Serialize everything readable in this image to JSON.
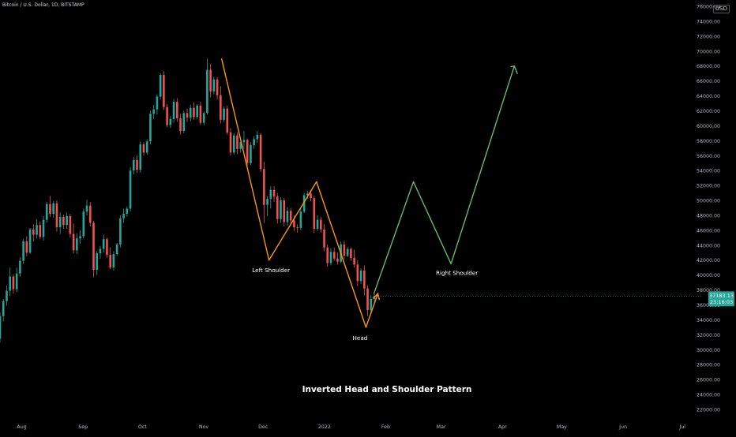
{
  "header": {
    "symbol": "Bitcoin / U.S. Dollar, 1D, BITSTAMP",
    "currency": "USD"
  },
  "chart_data": {
    "type": "candlestick",
    "title": "Inverted Head and Shoulder Pattern",
    "y_axis": {
      "range": [
        21000,
        77000
      ],
      "ticks": [
        "22000.00",
        "24000.00",
        "26000.00",
        "28000.00",
        "30000.00",
        "32000.00",
        "34000.00",
        "36000.00",
        "38000.00",
        "40000.00",
        "42000.00",
        "44000.00",
        "46000.00",
        "48000.00",
        "50000.00",
        "52000.00",
        "54000.00",
        "56000.00",
        "58000.00",
        "60000.00",
        "62000.00",
        "64000.00",
        "66000.00",
        "68000.00",
        "70000.00",
        "72000.00",
        "74000.00",
        "76000.00"
      ]
    },
    "x_axis": {
      "ticks": [
        "Aug",
        "Sep",
        "Oct",
        "Nov",
        "Dec",
        "2022",
        "Feb",
        "Mar",
        "Apr",
        "May",
        "Jun",
        "Jul"
      ]
    },
    "price_tag": {
      "price": "37183.13",
      "countdown": "23:16:03"
    },
    "pattern_orange": [
      {
        "date": "2021-11-10",
        "price": 69000
      },
      {
        "date": "2021-12-04",
        "price": 42000
      },
      {
        "date": "2021-12-28",
        "price": 52500
      },
      {
        "date": "2022-01-22",
        "price": 33000
      },
      {
        "date": "2022-01-28",
        "price": 37500
      }
    ],
    "projection_green": [
      {
        "date": "2022-01-26",
        "price": 37500
      },
      {
        "date": "2022-02-15",
        "price": 52500
      },
      {
        "date": "2022-03-06",
        "price": 41500
      },
      {
        "date": "2022-04-07",
        "price": 68000
      }
    ],
    "annotations": [
      {
        "text": "Left Shoulder",
        "date": "2021-12-05",
        "price": 40400
      },
      {
        "text": "Head",
        "date": "2022-01-19",
        "price": 31300
      },
      {
        "text": "Right Shoulder",
        "date": "2022-03-09",
        "price": 40000
      }
    ],
    "candles": [
      [
        31500,
        35000,
        31000,
        34500
      ],
      [
        34500,
        36800,
        33800,
        36500
      ],
      [
        36500,
        38600,
        35900,
        37900
      ],
      [
        37900,
        41000,
        37200,
        39800
      ],
      [
        39800,
        40100,
        37500,
        38100
      ],
      [
        38100,
        41000,
        37700,
        40200
      ],
      [
        40200,
        42400,
        39800,
        41900
      ],
      [
        41900,
        44800,
        41500,
        44500
      ],
      [
        44500,
        45200,
        42500,
        43000
      ],
      [
        43000,
        46300,
        42800,
        46100
      ],
      [
        46100,
        46800,
        44500,
        45400
      ],
      [
        45400,
        47500,
        44900,
        46700
      ],
      [
        46700,
        47200,
        44800,
        45100
      ],
      [
        45100,
        47900,
        44600,
        47400
      ],
      [
        47400,
        49800,
        47000,
        49500
      ],
      [
        49500,
        50600,
        47800,
        48200
      ],
      [
        48200,
        49900,
        47700,
        49600
      ],
      [
        49600,
        50000,
        45800,
        46400
      ],
      [
        46400,
        48400,
        45500,
        47800
      ],
      [
        47800,
        48100,
        46200,
        46700
      ],
      [
        46700,
        48400,
        46200,
        47900
      ],
      [
        47900,
        48200,
        45000,
        45500
      ],
      [
        45500,
        46900,
        42900,
        43300
      ],
      [
        43300,
        45600,
        42800,
        44900
      ],
      [
        44900,
        46000,
        44200,
        45200
      ],
      [
        45200,
        48900,
        44900,
        48500
      ],
      [
        48500,
        50100,
        48000,
        49300
      ],
      [
        49300,
        49800,
        46500,
        47000
      ],
      [
        47000,
        47300,
        39700,
        40700
      ],
      [
        40700,
        43200,
        40000,
        42900
      ],
      [
        42900,
        43900,
        42200,
        43500
      ],
      [
        43500,
        45400,
        43000,
        44800
      ],
      [
        44800,
        45000,
        42300,
        42700
      ],
      [
        42700,
        43700,
        40800,
        41000
      ],
      [
        41000,
        43200,
        40600,
        42800
      ],
      [
        42800,
        44300,
        42600,
        44100
      ],
      [
        44100,
        48000,
        43700,
        47600
      ],
      [
        47600,
        48900,
        47000,
        48200
      ],
      [
        48200,
        49200,
        47800,
        48900
      ],
      [
        48900,
        54500,
        48500,
        54000
      ],
      [
        54000,
        55800,
        53500,
        55400
      ],
      [
        55400,
        56000,
        53700,
        54100
      ],
      [
        54100,
        57900,
        53700,
        57500
      ],
      [
        57500,
        57800,
        56000,
        56400
      ],
      [
        56400,
        58200,
        56100,
        57900
      ],
      [
        57900,
        62000,
        57500,
        61600
      ],
      [
        61600,
        62800,
        60900,
        62200
      ],
      [
        62200,
        64200,
        61500,
        63900
      ],
      [
        63900,
        67000,
        63500,
        66800
      ],
      [
        66800,
        67300,
        62100,
        62500
      ],
      [
        62500,
        62900,
        59800,
        60100
      ],
      [
        60100,
        61300,
        59700,
        60900
      ],
      [
        60900,
        63600,
        60400,
        63200
      ],
      [
        63200,
        63700,
        60500,
        61000
      ],
      [
        61000,
        61600,
        58800,
        59300
      ],
      [
        59300,
        62000,
        59000,
        61700
      ],
      [
        61700,
        62300,
        60500,
        61100
      ],
      [
        61100,
        62800,
        60600,
        62400
      ],
      [
        62400,
        63100,
        60800,
        61200
      ],
      [
        61200,
        62900,
        60900,
        62700
      ],
      [
        62700,
        63200,
        60100,
        60400
      ],
      [
        60400,
        61900,
        60100,
        61700
      ],
      [
        61700,
        69000,
        61500,
        67500
      ],
      [
        67500,
        68300,
        63800,
        64600
      ],
      [
        64600,
        66600,
        64200,
        66200
      ],
      [
        66200,
        66500,
        63500,
        64100
      ],
      [
        64100,
        65300,
        60300,
        60800
      ],
      [
        60800,
        62600,
        60500,
        62300
      ],
      [
        62300,
        62700,
        58800,
        59100
      ],
      [
        59100,
        59700,
        56000,
        56400
      ],
      [
        56400,
        59000,
        56100,
        58700
      ],
      [
        58700,
        59100,
        56200,
        56900
      ],
      [
        56900,
        58400,
        56400,
        57800
      ],
      [
        57800,
        59300,
        56900,
        58100
      ],
      [
        58100,
        58300,
        54500,
        55000
      ],
      [
        55000,
        57800,
        54700,
        57400
      ],
      [
        57400,
        58600,
        56900,
        58200
      ],
      [
        58200,
        59300,
        57700,
        58800
      ],
      [
        58800,
        59000,
        53800,
        54200
      ],
      [
        54200,
        55200,
        47000,
        49400
      ],
      [
        49400,
        50600,
        47900,
        50200
      ],
      [
        50200,
        51900,
        48900,
        51400
      ],
      [
        51400,
        51900,
        49800,
        50500
      ],
      [
        50500,
        51000,
        46900,
        47500
      ],
      [
        47500,
        50400,
        47000,
        50000
      ],
      [
        50000,
        50300,
        46500,
        47100
      ],
      [
        47100,
        49100,
        46600,
        48600
      ],
      [
        48600,
        49000,
        46900,
        47300
      ],
      [
        47300,
        48000,
        45900,
        46400
      ],
      [
        46400,
        46800,
        45700,
        46300
      ],
      [
        46300,
        48900,
        46000,
        48500
      ],
      [
        48500,
        51000,
        48300,
        50700
      ],
      [
        50700,
        51300,
        50200,
        50900
      ],
      [
        50900,
        51300,
        49900,
        50300
      ],
      [
        50300,
        50600,
        45600,
        46200
      ],
      [
        46200,
        48000,
        45900,
        47400
      ],
      [
        47400,
        47800,
        45700,
        46100
      ],
      [
        46100,
        46800,
        43200,
        43700
      ],
      [
        43700,
        44100,
        41100,
        41600
      ],
      [
        41600,
        43600,
        41300,
        43100
      ],
      [
        43100,
        43700,
        41900,
        42200
      ],
      [
        42200,
        43000,
        41400,
        41800
      ],
      [
        41800,
        44500,
        41600,
        44100
      ],
      [
        44100,
        44600,
        42100,
        42600
      ],
      [
        42600,
        43800,
        42400,
        43500
      ],
      [
        43500,
        43700,
        41900,
        42300
      ],
      [
        42300,
        43400,
        41000,
        41400
      ],
      [
        41400,
        42000,
        38500,
        39200
      ],
      [
        39200,
        40900,
        38800,
        40600
      ],
      [
        40600,
        41300,
        37300,
        38200
      ],
      [
        38200,
        38600,
        34500,
        35300
      ],
      [
        35300,
        37300,
        34900,
        36800
      ],
      [
        36800,
        37500,
        36300,
        37183
      ]
    ]
  }
}
